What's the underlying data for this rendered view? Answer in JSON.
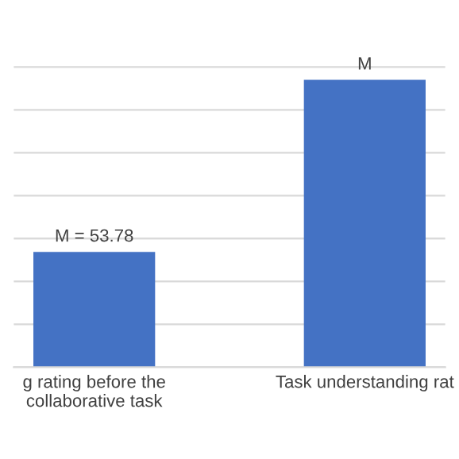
{
  "chart_data": {
    "type": "bar",
    "categories": [
      "g rating before the collaborative task",
      "Task understanding rat"
    ],
    "values": [
      53.78,
      134
    ],
    "color": "#4472c4",
    "value_labels": [
      "M = 53.78",
      "M"
    ],
    "grid": "y"
  }
}
